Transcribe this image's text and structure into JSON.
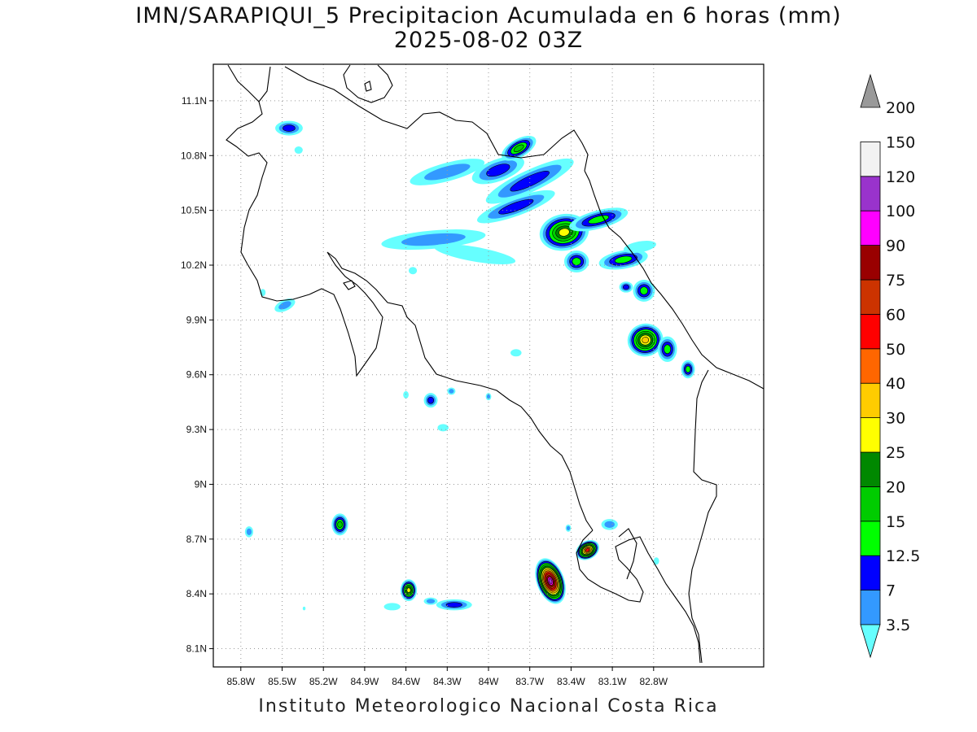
{
  "title": {
    "line1": "IMN/SARAPIQUI_5 Precipitacion Acumulada en 6 horas (mm)",
    "line2": "2025-08-02 03Z"
  },
  "footer": "Instituto Meteorologico Nacional Costa Rica",
  "map": {
    "lon_range": [
      -86.0,
      -82.0
    ],
    "lat_range": [
      8.0,
      11.3
    ],
    "lon_ticks": [
      {
        "value": -85.8,
        "label": "85.8W"
      },
      {
        "value": -85.5,
        "label": "85.5W"
      },
      {
        "value": -85.2,
        "label": "85.2W"
      },
      {
        "value": -84.9,
        "label": "84.9W"
      },
      {
        "value": -84.6,
        "label": "84.6W"
      },
      {
        "value": -84.3,
        "label": "84.3W"
      },
      {
        "value": -84.0,
        "label": "84W"
      },
      {
        "value": -83.7,
        "label": "83.7W"
      },
      {
        "value": -83.4,
        "label": "83.4W"
      },
      {
        "value": -83.1,
        "label": "83.1W"
      },
      {
        "value": -82.8,
        "label": "82.8W"
      }
    ],
    "lat_ticks": [
      {
        "value": 8.1,
        "label": "8.1N"
      },
      {
        "value": 8.4,
        "label": "8.4N"
      },
      {
        "value": 8.7,
        "label": "8.7N"
      },
      {
        "value": 9.0,
        "label": "9N"
      },
      {
        "value": 9.3,
        "label": "9.3N"
      },
      {
        "value": 9.6,
        "label": "9.6N"
      },
      {
        "value": 9.9,
        "label": "9.9N"
      },
      {
        "value": 10.2,
        "label": "10.2N"
      },
      {
        "value": 10.5,
        "label": "10.5N"
      },
      {
        "value": 10.8,
        "label": "10.8N"
      },
      {
        "value": 11.1,
        "label": "11.1N"
      }
    ],
    "grid": true
  },
  "colorbar": {
    "levels": [
      {
        "label": "3.5",
        "color": "#66ffff"
      },
      {
        "label": "7",
        "color": "#3399ff"
      },
      {
        "label": "12.5",
        "color": "#0000ff"
      },
      {
        "label": "15",
        "color": "#00ff00"
      },
      {
        "label": "20",
        "color": "#00cc00"
      },
      {
        "label": "25",
        "color": "#008800"
      },
      {
        "label": "30",
        "color": "#ffff00"
      },
      {
        "label": "40",
        "color": "#ffcc00"
      },
      {
        "label": "50",
        "color": "#ff6600"
      },
      {
        "label": "60",
        "color": "#ff0000"
      },
      {
        "label": "75",
        "color": "#cc3300"
      },
      {
        "label": "90",
        "color": "#990000"
      },
      {
        "label": "100",
        "color": "#ff00ff"
      },
      {
        "label": "120",
        "color": "#9933cc"
      },
      {
        "label": "150",
        "color": "#f2f2f2"
      },
      {
        "label": "200",
        "color": "#999999"
      }
    ]
  },
  "precip_cells": [
    {
      "lon": -85.45,
      "lat": 10.95,
      "rx": 0.1,
      "ry": 0.04,
      "rot": 0,
      "peak": 2
    },
    {
      "lon": -85.38,
      "lat": 10.83,
      "rx": 0.03,
      "ry": 0.02,
      "rot": 0,
      "peak": 0
    },
    {
      "lon": -84.3,
      "lat": 10.71,
      "rx": 0.28,
      "ry": 0.05,
      "rot": -15,
      "peak": 1
    },
    {
      "lon": -83.93,
      "lat": 10.72,
      "rx": 0.2,
      "ry": 0.06,
      "rot": -20,
      "peak": 2
    },
    {
      "lon": -83.78,
      "lat": 10.84,
      "rx": 0.14,
      "ry": 0.05,
      "rot": -30,
      "peak": 4
    },
    {
      "lon": -83.7,
      "lat": 10.66,
      "rx": 0.35,
      "ry": 0.06,
      "rot": -25,
      "peak": 2
    },
    {
      "lon": -83.8,
      "lat": 10.52,
      "rx": 0.3,
      "ry": 0.05,
      "rot": -20,
      "peak": 2
    },
    {
      "lon": -83.45,
      "lat": 10.38,
      "rx": 0.18,
      "ry": 0.1,
      "rot": -10,
      "peak": 6
    },
    {
      "lon": -83.2,
      "lat": 10.45,
      "rx": 0.22,
      "ry": 0.05,
      "rot": -15,
      "peak": 3
    },
    {
      "lon": -84.4,
      "lat": 10.34,
      "rx": 0.38,
      "ry": 0.05,
      "rot": -5,
      "peak": 1
    },
    {
      "lon": -84.1,
      "lat": 10.26,
      "rx": 0.3,
      "ry": 0.04,
      "rot": 10,
      "peak": 0
    },
    {
      "lon": -83.36,
      "lat": 10.22,
      "rx": 0.09,
      "ry": 0.06,
      "rot": 0,
      "peak": 3
    },
    {
      "lon": -83.02,
      "lat": 10.23,
      "rx": 0.18,
      "ry": 0.05,
      "rot": -10,
      "peak": 3
    },
    {
      "lon": -82.9,
      "lat": 10.3,
      "rx": 0.12,
      "ry": 0.03,
      "rot": -10,
      "peak": 0
    },
    {
      "lon": -82.87,
      "lat": 10.06,
      "rx": 0.08,
      "ry": 0.06,
      "rot": -40,
      "peak": 3
    },
    {
      "lon": -83.0,
      "lat": 10.08,
      "rx": 0.05,
      "ry": 0.03,
      "rot": 0,
      "peak": 2
    },
    {
      "lon": -82.86,
      "lat": 9.79,
      "rx": 0.13,
      "ry": 0.09,
      "rot": -10,
      "peak": 7
    },
    {
      "lon": -82.7,
      "lat": 9.74,
      "rx": 0.07,
      "ry": 0.07,
      "rot": 0,
      "peak": 3
    },
    {
      "lon": -82.55,
      "lat": 9.63,
      "rx": 0.05,
      "ry": 0.05,
      "rot": 0,
      "peak": 3
    },
    {
      "lon": -84.55,
      "lat": 10.17,
      "rx": 0.03,
      "ry": 0.02,
      "rot": 0,
      "peak": 0
    },
    {
      "lon": -85.48,
      "lat": 9.98,
      "rx": 0.08,
      "ry": 0.03,
      "rot": -25,
      "peak": 1
    },
    {
      "lon": -85.64,
      "lat": 10.05,
      "rx": 0.02,
      "ry": 0.02,
      "rot": 0,
      "peak": 0
    },
    {
      "lon": -84.42,
      "lat": 9.46,
      "rx": 0.05,
      "ry": 0.04,
      "rot": 0,
      "peak": 2
    },
    {
      "lon": -84.27,
      "lat": 9.51,
      "rx": 0.03,
      "ry": 0.02,
      "rot": 0,
      "peak": 1
    },
    {
      "lon": -84.33,
      "lat": 9.31,
      "rx": 0.04,
      "ry": 0.02,
      "rot": 0,
      "peak": 0
    },
    {
      "lon": -83.8,
      "lat": 9.72,
      "rx": 0.04,
      "ry": 0.02,
      "rot": 0,
      "peak": 0
    },
    {
      "lon": -84.0,
      "lat": 9.48,
      "rx": 0.02,
      "ry": 0.02,
      "rot": 0,
      "peak": 1
    },
    {
      "lon": -84.6,
      "lat": 9.49,
      "rx": 0.02,
      "ry": 0.02,
      "rot": 0,
      "peak": 0
    },
    {
      "lon": -85.08,
      "lat": 8.78,
      "rx": 0.06,
      "ry": 0.06,
      "rot": 0,
      "peak": 4
    },
    {
      "lon": -85.74,
      "lat": 8.74,
      "rx": 0.03,
      "ry": 0.03,
      "rot": 0,
      "peak": 1
    },
    {
      "lon": -84.58,
      "lat": 8.42,
      "rx": 0.06,
      "ry": 0.06,
      "rot": 0,
      "peak": 6
    },
    {
      "lon": -84.42,
      "lat": 8.36,
      "rx": 0.05,
      "ry": 0.02,
      "rot": 0,
      "peak": 1
    },
    {
      "lon": -84.25,
      "lat": 8.34,
      "rx": 0.13,
      "ry": 0.03,
      "rot": 0,
      "peak": 2
    },
    {
      "lon": -84.7,
      "lat": 8.33,
      "rx": 0.06,
      "ry": 0.02,
      "rot": 0,
      "peak": 0
    },
    {
      "lon": -83.55,
      "lat": 8.47,
      "rx": 0.1,
      "ry": 0.13,
      "rot": -20,
      "peak": 13
    },
    {
      "lon": -83.28,
      "lat": 8.64,
      "rx": 0.09,
      "ry": 0.05,
      "rot": -30,
      "peak": 9
    },
    {
      "lon": -83.12,
      "lat": 8.78,
      "rx": 0.06,
      "ry": 0.03,
      "rot": 0,
      "peak": 1
    },
    {
      "lon": -83.42,
      "lat": 8.76,
      "rx": 0.02,
      "ry": 0.02,
      "rot": 0,
      "peak": 1
    },
    {
      "lon": -82.78,
      "lat": 8.58,
      "rx": 0.02,
      "ry": 0.02,
      "rot": 0,
      "peak": 0
    },
    {
      "lon": -85.34,
      "lat": 8.32,
      "rx": 0.01,
      "ry": 0.01,
      "rot": 0,
      "peak": 0
    }
  ]
}
